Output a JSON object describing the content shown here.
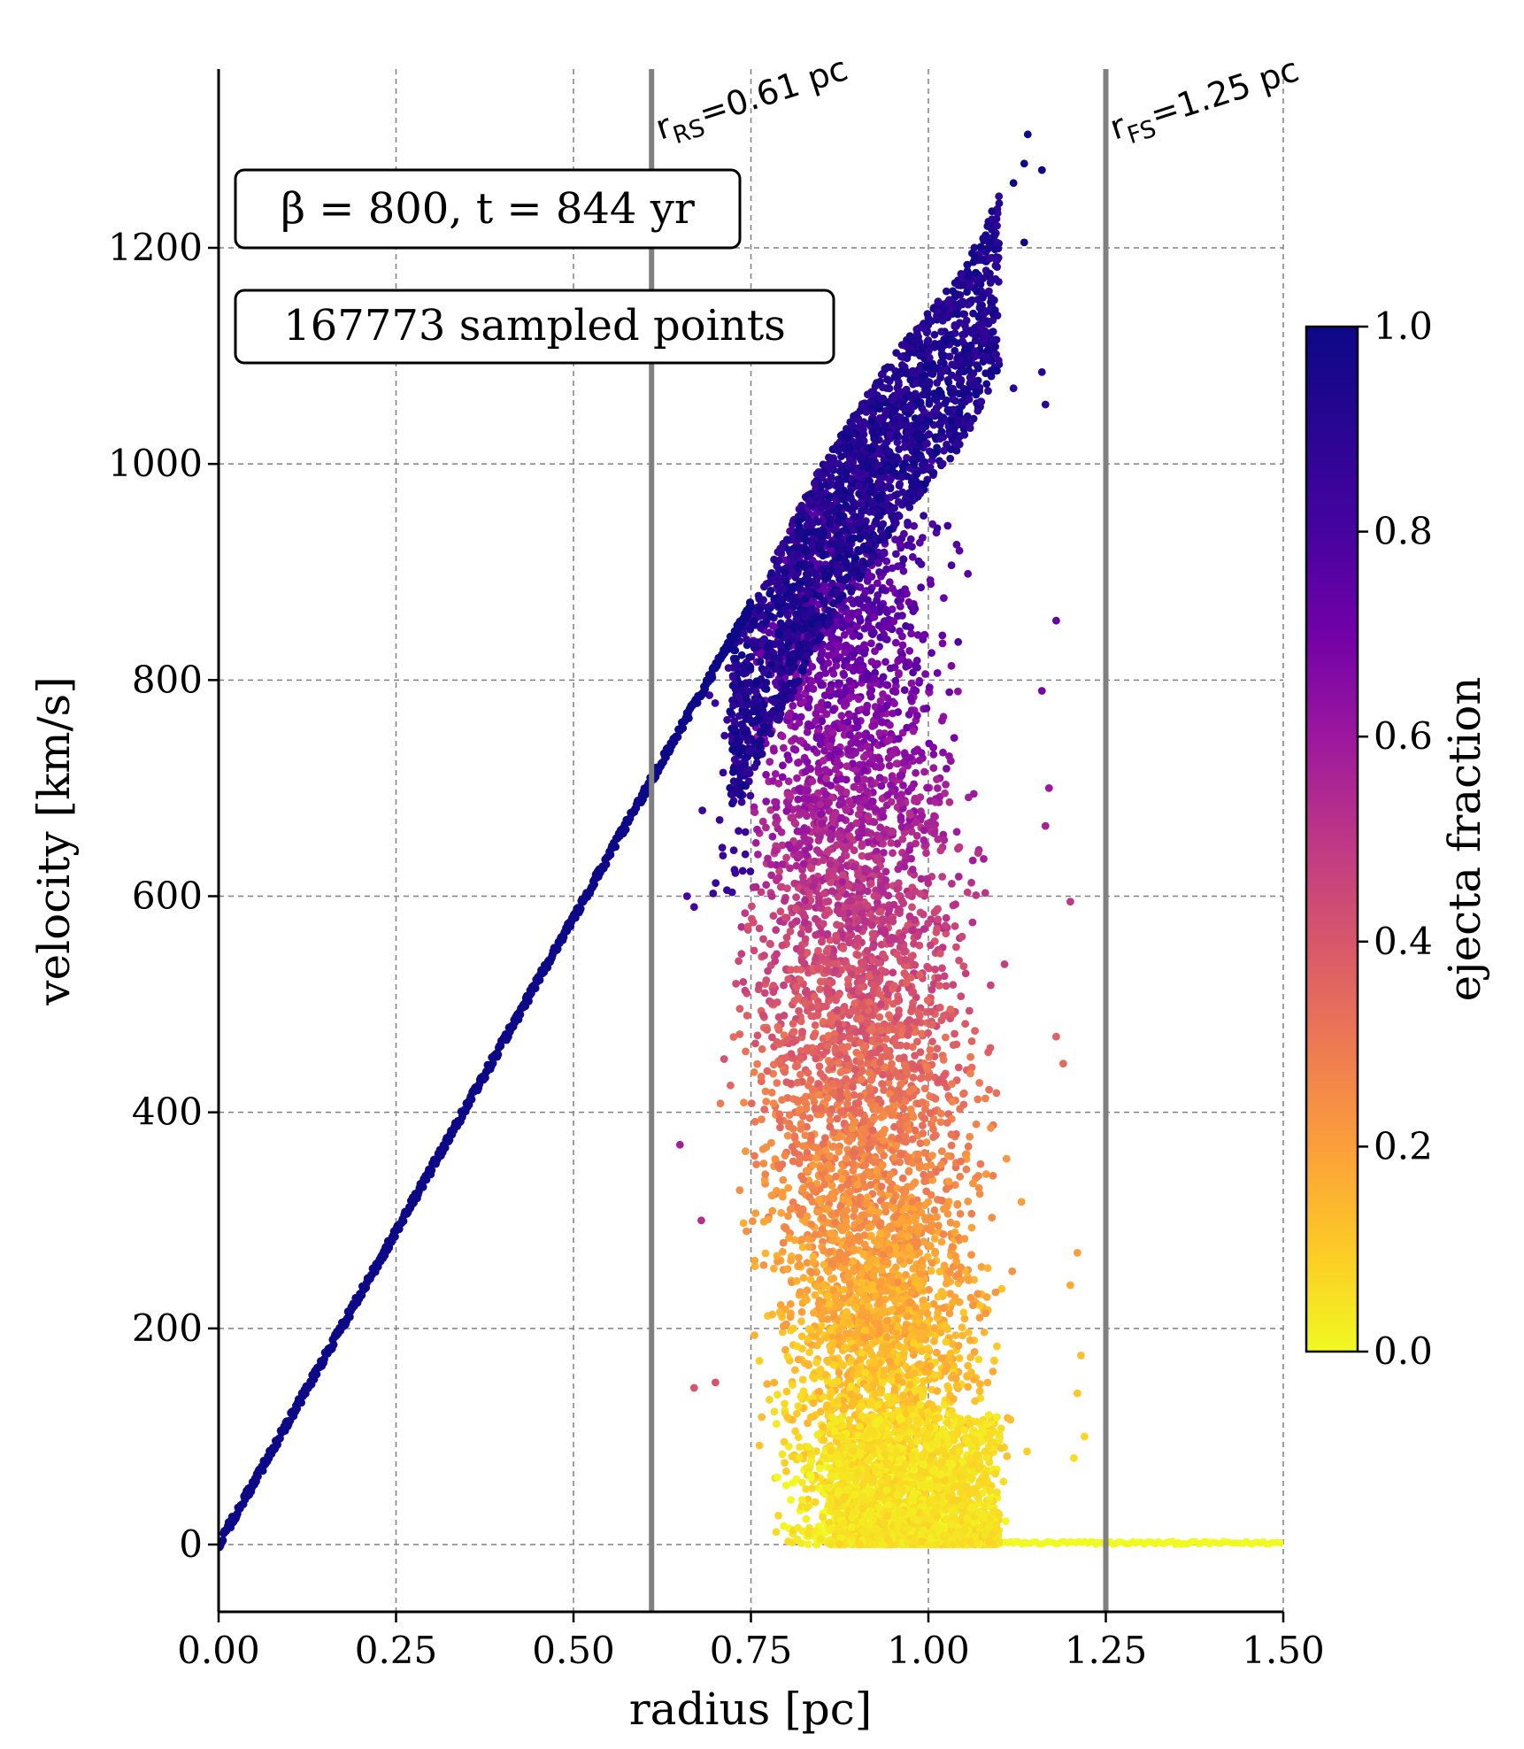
{
  "chart_data": {
    "type": "scatter",
    "xlabel": "radius [pc]",
    "ylabel": "velocity [km/s]",
    "xlim": [
      0.0,
      1.5
    ],
    "ylim": [
      -65,
      1370
    ],
    "x_ticks": [
      0.0,
      0.25,
      0.5,
      0.75,
      1.0,
      1.25,
      1.5
    ],
    "x_tick_labels": [
      "0.00",
      "0.25",
      "0.50",
      "0.75",
      "1.00",
      "1.25",
      "1.50"
    ],
    "y_ticks": [
      0,
      200,
      400,
      600,
      800,
      1000,
      1200
    ],
    "y_tick_labels": [
      "0",
      "200",
      "400",
      "600",
      "800",
      "1000",
      "1200"
    ],
    "grid": true,
    "annotations": [
      {
        "text": "β = 800, t = 844 yr"
      },
      {
        "text": "167773 sampled points"
      }
    ],
    "shock_lines": [
      {
        "x": 0.61,
        "label_main": "r",
        "label_sub": "RS",
        "label_rest": "=0.61 pc"
      },
      {
        "x": 1.25,
        "label_main": "r",
        "label_sub": "FS",
        "label_rest": "=1.25 pc"
      }
    ],
    "colorbar": {
      "label": "ejecta fraction",
      "cmap": "plasma",
      "range": [
        0.0,
        1.0
      ],
      "ticks": [
        0.0,
        0.2,
        0.4,
        0.6,
        0.8,
        1.0
      ],
      "tick_labels": [
        "0.0",
        "0.2",
        "0.4",
        "0.6",
        "0.8",
        "1.0"
      ]
    },
    "colors": {
      "grid": "#808080",
      "shock_line": "#808080",
      "unshocked_ejecta": "#0d0887",
      "ambient": "#f0f921"
    },
    "series": [
      {
        "kind": "linear-unshocked-ejecta",
        "x_range": [
          0.0,
          0.75
        ],
        "velocity_slope_km_s_per_pc": 1160,
        "ejecta_fraction": 1.0
      },
      {
        "kind": "shocked-region-cloud",
        "x_range": [
          0.58,
          1.21
        ],
        "velocity_range": [
          0,
          1305
        ],
        "top_envelope": [
          [
            0.75,
            870
          ],
          [
            0.85,
            1000
          ],
          [
            0.95,
            1100
          ],
          [
            1.05,
            1180
          ],
          [
            1.14,
            1305
          ]
        ],
        "ejecta_fraction_vs_velocity": [
          [
            0,
            0.0
          ],
          [
            400,
            0.3
          ],
          [
            800,
            0.7
          ],
          [
            1200,
            1.0
          ]
        ]
      },
      {
        "kind": "ambient-medium",
        "x_range": [
          0.88,
          1.5
        ],
        "velocity": 0,
        "ejecta_fraction": 0.0
      }
    ]
  }
}
